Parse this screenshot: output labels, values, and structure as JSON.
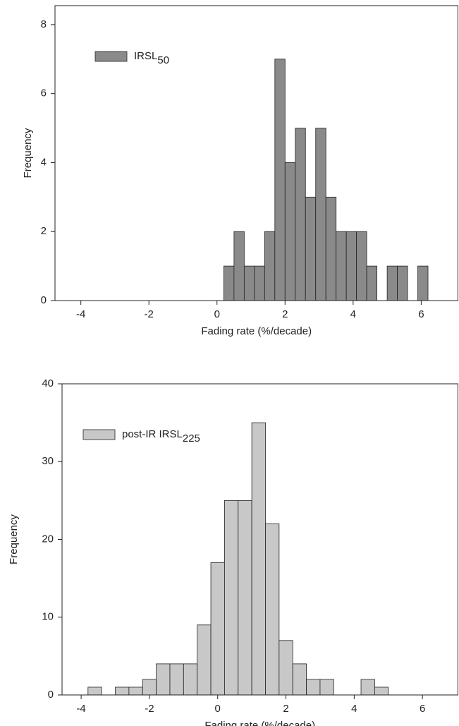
{
  "chart_data": [
    {
      "type": "histogram",
      "x_label": "Fading rate (%/decade)",
      "y_label": "Frequency",
      "series": [
        {
          "name": "IRSL",
          "subscript": "50",
          "color": "#8a8a8a",
          "bins": [
            0.2,
            0.5,
            0.8,
            1.1,
            1.4,
            1.7,
            2.0,
            2.3,
            2.6,
            2.9,
            3.2,
            3.5,
            3.8,
            4.1,
            4.4,
            4.7,
            5.0,
            5.3,
            5.6,
            5.9,
            6.2
          ],
          "values": [
            1,
            2,
            1,
            1,
            2,
            7,
            4,
            5,
            3,
            5,
            3,
            2,
            2,
            2,
            1,
            0,
            1,
            1,
            0,
            1
          ]
        }
      ],
      "xlim": [
        -4.76,
        7.08
      ],
      "ylim": [
        0,
        8.55
      ],
      "xticks": [
        -4,
        -2,
        0,
        2,
        4,
        6
      ],
      "yticks": [
        0,
        2,
        4,
        6,
        8
      ],
      "legend": "upper left"
    },
    {
      "type": "histogram",
      "x_label": "Fading rate (%/decade)",
      "y_label": "Frequency",
      "series": [
        {
          "name": "post-IR IRSL",
          "subscript": "225",
          "color": "#c8c8c8",
          "bins": [
            -3.8,
            -3.4,
            -3.0,
            -2.6,
            -2.2,
            -1.8,
            -1.4,
            -1.0,
            -0.6,
            -0.2,
            0.2,
            0.6,
            1.0,
            1.4,
            1.8,
            2.2,
            2.6,
            3.0,
            3.4,
            3.8,
            4.2,
            4.6,
            5.0
          ],
          "values": [
            1,
            0,
            1,
            1,
            2,
            4,
            4,
            4,
            9,
            17,
            25,
            25,
            35,
            22,
            7,
            4,
            2,
            2,
            0,
            0,
            2,
            1
          ]
        }
      ],
      "xlim": [
        -4.56,
        7.04
      ],
      "ylim": [
        0,
        40
      ],
      "xticks": [
        -4,
        -2,
        0,
        2,
        4,
        6
      ],
      "yticks": [
        0,
        10,
        20,
        30,
        40
      ],
      "legend": "upper left"
    }
  ]
}
